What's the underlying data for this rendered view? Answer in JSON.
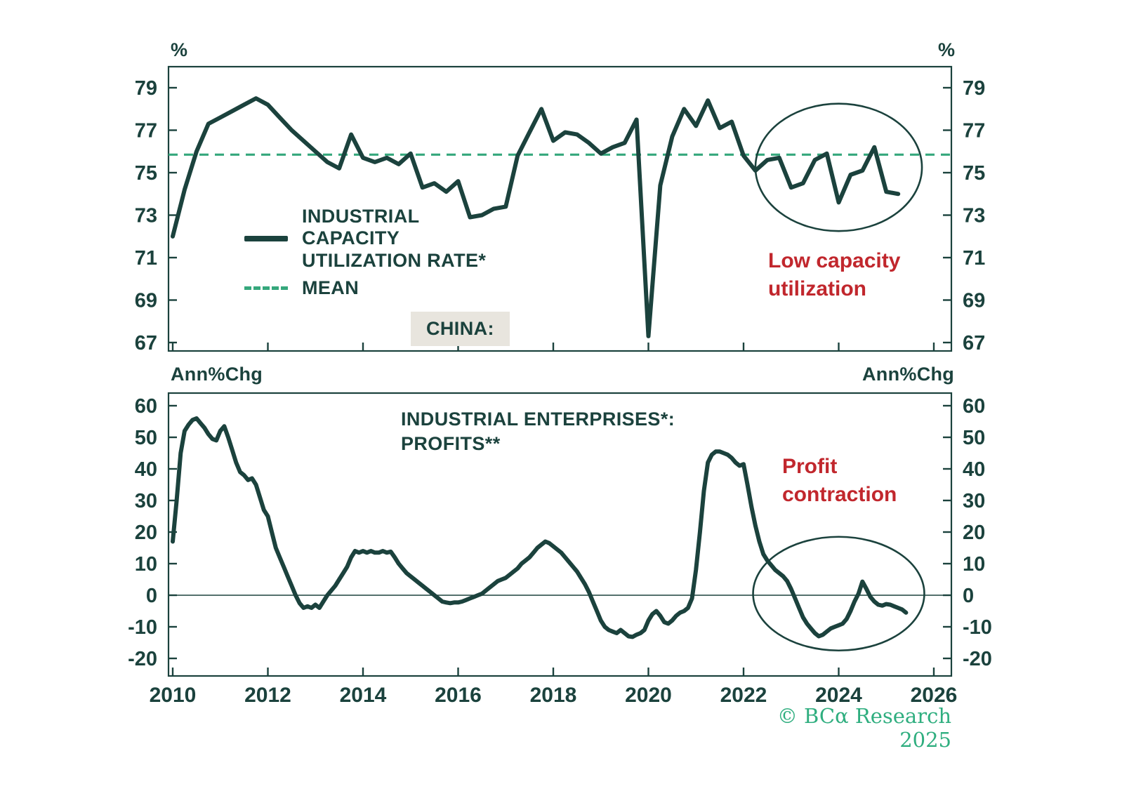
{
  "colors": {
    "line": "#1b423d",
    "axis": "#1b423d",
    "mean": "#35a77c",
    "annotation_red": "#c1272d",
    "china_box_bg": "#e8e5de",
    "footer_green": "#2fae7f"
  },
  "top_chart": {
    "unit_left": "%",
    "unit_right": "%",
    "legend": {
      "series_label": "INDUSTRIAL\nCAPACITY\nUTILIZATION RATE*",
      "mean_label": "MEAN"
    },
    "region_label": "CHINA:",
    "annotation": "Low capacity\nutilization"
  },
  "bottom_chart": {
    "unit_left": "Ann%Chg",
    "unit_right": "Ann%Chg",
    "title": "INDUSTRIAL ENTERPRISES*:\nPROFITS**",
    "annotation": "Profit\ncontraction"
  },
  "footer": "© BCα Research 2025",
  "chart_data": [
    {
      "type": "line",
      "title": "CHINA: INDUSTRIAL CAPACITY UTILIZATION RATE*",
      "ylabel": "%",
      "xlabel": "",
      "ylim": [
        67,
        79
      ],
      "yticks": [
        79,
        77,
        75,
        73,
        71,
        69,
        67
      ],
      "xlim": [
        2010,
        2026.4
      ],
      "xticks": [
        2010,
        2012,
        2014,
        2016,
        2018,
        2020,
        2022,
        2024,
        2026
      ],
      "grid": false,
      "mean": 75.85,
      "zero_line": false,
      "series": [
        {
          "name": "INDUSTRIAL CAPACITY UTILIZATION RATE*",
          "id": "capacity-utilization-line",
          "x_start": 2010.0,
          "x_step": 0.25,
          "values": [
            72.0,
            74.2,
            76.0,
            77.3,
            77.6,
            77.9,
            78.2,
            78.5,
            78.2,
            77.6,
            77.0,
            76.5,
            76.0,
            75.5,
            75.2,
            76.8,
            75.7,
            75.5,
            75.7,
            75.4,
            75.9,
            74.3,
            74.5,
            74.1,
            74.6,
            72.9,
            73.0,
            73.3,
            73.4,
            75.8,
            76.9,
            78.0,
            76.5,
            76.9,
            76.8,
            76.4,
            75.9,
            76.2,
            76.4,
            77.5,
            67.3,
            74.4,
            76.7,
            78.0,
            77.2,
            78.4,
            77.1,
            77.4,
            75.8,
            75.1,
            75.6,
            75.7,
            74.3,
            74.5,
            75.6,
            75.9,
            73.6,
            74.9,
            75.1,
            76.2,
            74.1,
            74.0
          ]
        }
      ],
      "ellipse": {
        "cx": 2024.0,
        "cy": 75.25,
        "rx": 1.75,
        "ry": 3.0,
        "label": "Low capacity utilization"
      }
    },
    {
      "type": "line",
      "title": "INDUSTRIAL ENTERPRISES*: PROFITS**",
      "ylabel": "Ann%Chg",
      "xlabel": "",
      "ylim": [
        -20,
        60
      ],
      "yticks": [
        60,
        50,
        40,
        30,
        20,
        10,
        0,
        -10,
        -20
      ],
      "xlim": [
        2010,
        2026.4
      ],
      "xticks": [
        2010,
        2012,
        2014,
        2016,
        2018,
        2020,
        2022,
        2024,
        2026
      ],
      "grid": false,
      "mean": null,
      "zero_line": true,
      "series": [
        {
          "name": "INDUSTRIAL ENTERPRISES PROFITS",
          "id": "profits-line",
          "x_start": 2010.0,
          "x_step": 0.08333,
          "values": [
            17,
            30,
            45,
            52,
            54,
            55.5,
            56,
            54.5,
            53,
            51,
            49.5,
            49,
            52,
            53.5,
            50,
            46,
            42,
            39,
            38,
            36.5,
            37,
            35,
            31,
            27,
            25,
            20,
            15,
            12,
            9,
            6,
            3,
            0,
            -2.5,
            -4,
            -3.5,
            -4,
            -3,
            -4,
            -2,
            0,
            1.5,
            3,
            5,
            7,
            9,
            12,
            14,
            13.5,
            14,
            13.5,
            14,
            13.5,
            13.5,
            14,
            13.5,
            13.8,
            12,
            10,
            8.5,
            7,
            6,
            5,
            4,
            3,
            2,
            1,
            0,
            -1,
            -2,
            -2.3,
            -2.5,
            -2.3,
            -2.3,
            -2,
            -1.5,
            -1,
            -0.5,
            0,
            0.5,
            1.5,
            2.5,
            3.5,
            4.5,
            5,
            5.5,
            6.5,
            7.5,
            8.5,
            10,
            11,
            12,
            13.5,
            15,
            16,
            17,
            16.5,
            15.5,
            14.5,
            13.5,
            12,
            10.5,
            9,
            7.5,
            5.5,
            3.5,
            1,
            -2,
            -5,
            -8,
            -10,
            -11,
            -11.5,
            -12,
            -11,
            -12,
            -13,
            -13.2,
            -12.5,
            -12,
            -11,
            -8,
            -6,
            -5,
            -6.5,
            -8.5,
            -9,
            -8,
            -6.5,
            -5.5,
            -5,
            -4,
            -1,
            8,
            20,
            33,
            42,
            44.5,
            45.5,
            45.5,
            45,
            44.5,
            43.5,
            42,
            41,
            41.5,
            35,
            28,
            22,
            17,
            13,
            11,
            9.5,
            8,
            7,
            6,
            4.5,
            2,
            -1,
            -4,
            -7,
            -9,
            -10.5,
            -12,
            -13,
            -12.5,
            -11.5,
            -10.5,
            -10,
            -9.5,
            -9,
            -7.5,
            -5,
            -2,
            0.5,
            4.3,
            2,
            -0.5,
            -2,
            -3,
            -3.3,
            -2.8,
            -3,
            -3.5,
            -4,
            -4.5,
            -5.5
          ]
        }
      ],
      "ellipse": {
        "cx": 2024.0,
        "cy": 0.5,
        "rx": 1.8,
        "ry": 18.0,
        "label": "Profit contraction"
      }
    }
  ]
}
